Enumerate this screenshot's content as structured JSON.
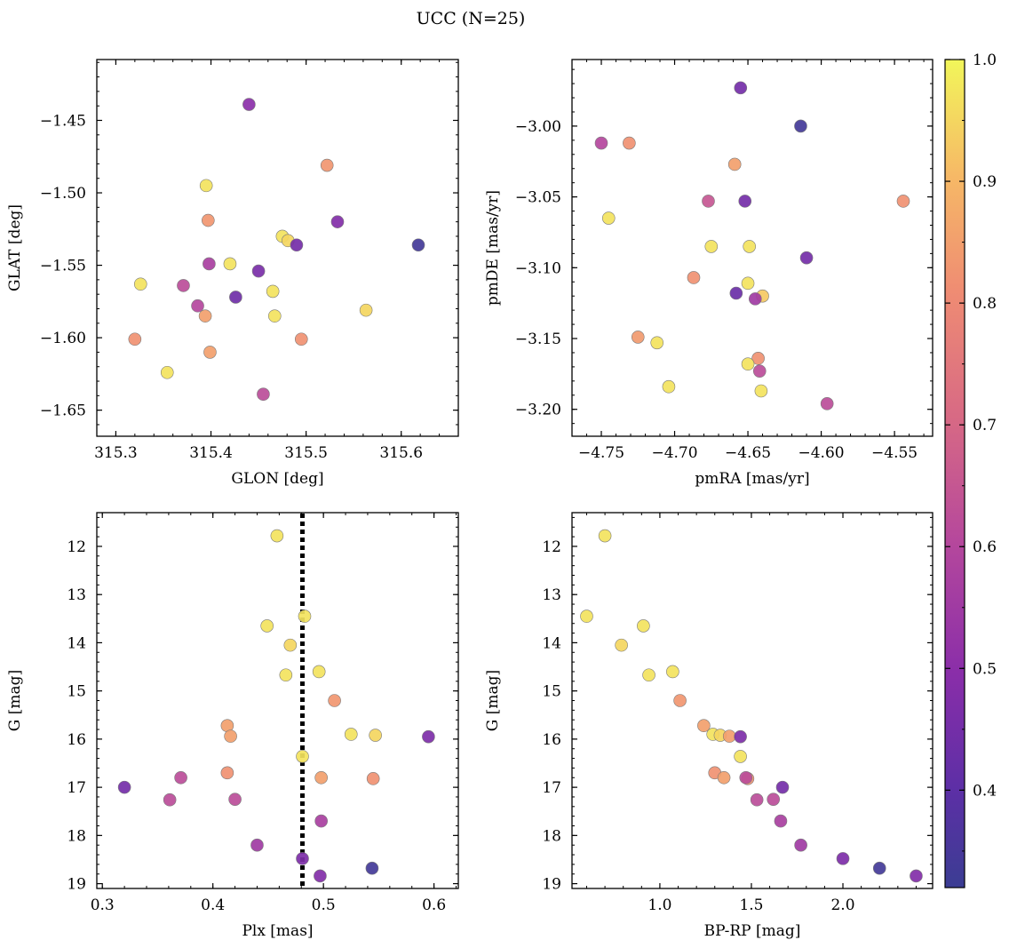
{
  "figure": {
    "title": "UCC (N=25)"
  },
  "colorbar": {
    "cmap": "plasma",
    "range": [
      0.32,
      1.0
    ],
    "ticks": [
      0.4,
      0.5,
      0.6,
      0.7,
      0.8,
      0.9,
      1.0
    ],
    "tick_labels": [
      "0.4",
      "0.5",
      "0.6",
      "0.7",
      "0.8",
      "0.9",
      "1.0"
    ]
  },
  "chart_data": [
    {
      "type": "scatter",
      "xlabel": "GLON [deg]",
      "ylabel": "GLAT [deg]",
      "xlim": [
        315.28,
        315.66
      ],
      "ylim": [
        -1.668,
        -1.408
      ],
      "xticks": [
        315.3,
        315.4,
        315.5,
        315.6
      ],
      "xtick_labels": [
        "315.3",
        "315.4",
        "315.5",
        "315.6"
      ],
      "yticks": [
        -1.45,
        -1.5,
        -1.55,
        -1.6,
        -1.65
      ],
      "ytick_labels": [
        "−1.45",
        "−1.50",
        "−1.55",
        "−1.60",
        "−1.65"
      ],
      "y_inverted": false,
      "points": [
        {
          "x": 315.44,
          "y": -1.439,
          "c": 0.5
        },
        {
          "x": 315.522,
          "y": -1.481,
          "c": 0.83
        },
        {
          "x": 315.395,
          "y": -1.495,
          "c": 0.97
        },
        {
          "x": 315.397,
          "y": -1.519,
          "c": 0.83
        },
        {
          "x": 315.533,
          "y": -1.52,
          "c": 0.48
        },
        {
          "x": 315.475,
          "y": -1.53,
          "c": 0.97
        },
        {
          "x": 315.481,
          "y": -1.533,
          "c": 0.95
        },
        {
          "x": 315.49,
          "y": -1.536,
          "c": 0.45
        },
        {
          "x": 315.618,
          "y": -1.536,
          "c": 0.34
        },
        {
          "x": 315.42,
          "y": -1.549,
          "c": 0.97
        },
        {
          "x": 315.398,
          "y": -1.549,
          "c": 0.57
        },
        {
          "x": 315.45,
          "y": -1.554,
          "c": 0.46
        },
        {
          "x": 315.326,
          "y": -1.563,
          "c": 0.97
        },
        {
          "x": 315.371,
          "y": -1.564,
          "c": 0.62
        },
        {
          "x": 315.465,
          "y": -1.568,
          "c": 0.97
        },
        {
          "x": 315.426,
          "y": -1.572,
          "c": 0.44
        },
        {
          "x": 315.386,
          "y": -1.578,
          "c": 0.6
        },
        {
          "x": 315.563,
          "y": -1.581,
          "c": 0.95
        },
        {
          "x": 315.394,
          "y": -1.585,
          "c": 0.85
        },
        {
          "x": 315.467,
          "y": -1.585,
          "c": 0.97
        },
        {
          "x": 315.32,
          "y": -1.601,
          "c": 0.82
        },
        {
          "x": 315.495,
          "y": -1.601,
          "c": 0.82
        },
        {
          "x": 315.399,
          "y": -1.61,
          "c": 0.85
        },
        {
          "x": 315.354,
          "y": -1.624,
          "c": 0.97
        },
        {
          "x": 315.455,
          "y": -1.639,
          "c": 0.62
        }
      ]
    },
    {
      "type": "scatter",
      "xlabel": "pmRA [mas/yr]",
      "ylabel": "pmDE [mas/yr]",
      "xlim": [
        -4.77,
        -4.524
      ],
      "ylim": [
        -3.219,
        -2.953
      ],
      "xticks": [
        -4.75,
        -4.7,
        -4.65,
        -4.6,
        -4.55
      ],
      "xtick_labels": [
        "−4.75",
        "−4.70",
        "−4.65",
        "−4.60",
        "−4.55"
      ],
      "yticks": [
        -3.0,
        -3.05,
        -3.1,
        -3.15,
        -3.2
      ],
      "ytick_labels": [
        "−3.00",
        "−3.05",
        "−3.10",
        "−3.15",
        "−3.20"
      ],
      "y_inverted": false,
      "points": [
        {
          "x": -4.655,
          "y": -2.973,
          "c": 0.45
        },
        {
          "x": -4.614,
          "y": -3.0,
          "c": 0.34
        },
        {
          "x": -4.75,
          "y": -3.012,
          "c": 0.6
        },
        {
          "x": -4.731,
          "y": -3.012,
          "c": 0.82
        },
        {
          "x": -4.659,
          "y": -3.027,
          "c": 0.85
        },
        {
          "x": -4.544,
          "y": -3.053,
          "c": 0.82
        },
        {
          "x": -4.677,
          "y": -3.053,
          "c": 0.65
        },
        {
          "x": -4.652,
          "y": -3.053,
          "c": 0.45
        },
        {
          "x": -4.745,
          "y": -3.065,
          "c": 0.97
        },
        {
          "x": -4.675,
          "y": -3.085,
          "c": 0.97
        },
        {
          "x": -4.649,
          "y": -3.085,
          "c": 0.97
        },
        {
          "x": -4.61,
          "y": -3.093,
          "c": 0.45
        },
        {
          "x": -4.687,
          "y": -3.107,
          "c": 0.82
        },
        {
          "x": -4.65,
          "y": -3.111,
          "c": 0.97
        },
        {
          "x": -4.658,
          "y": -3.118,
          "c": 0.43
        },
        {
          "x": -4.64,
          "y": -3.12,
          "c": 0.93
        },
        {
          "x": -4.645,
          "y": -3.122,
          "c": 0.55
        },
        {
          "x": -4.725,
          "y": -3.149,
          "c": 0.84
        },
        {
          "x": -4.712,
          "y": -3.153,
          "c": 0.97
        },
        {
          "x": -4.643,
          "y": -3.164,
          "c": 0.82
        },
        {
          "x": -4.65,
          "y": -3.168,
          "c": 0.97
        },
        {
          "x": -4.642,
          "y": -3.173,
          "c": 0.62
        },
        {
          "x": -4.704,
          "y": -3.184,
          "c": 0.97
        },
        {
          "x": -4.641,
          "y": -3.187,
          "c": 0.97
        },
        {
          "x": -4.596,
          "y": -3.196,
          "c": 0.62
        }
      ]
    },
    {
      "type": "scatter",
      "xlabel": "Plx [mas]",
      "ylabel": "G [mag]",
      "xlim": [
        0.295,
        0.622
      ],
      "ylim": [
        19.1,
        11.3
      ],
      "xticks": [
        0.3,
        0.4,
        0.5,
        0.6
      ],
      "xtick_labels": [
        "0.3",
        "0.4",
        "0.5",
        "0.6"
      ],
      "yticks": [
        12,
        13,
        14,
        15,
        16,
        17,
        18,
        19
      ],
      "ytick_labels": [
        "12",
        "13",
        "14",
        "15",
        "16",
        "17",
        "18",
        "19"
      ],
      "y_inverted": true,
      "vline": {
        "x": 0.481,
        "style": "dotted",
        "color": "#000000"
      },
      "points": [
        {
          "x": 0.458,
          "y": 11.78,
          "c": 0.97
        },
        {
          "x": 0.483,
          "y": 13.45,
          "c": 0.97
        },
        {
          "x": 0.449,
          "y": 13.65,
          "c": 0.97
        },
        {
          "x": 0.47,
          "y": 14.05,
          "c": 0.95
        },
        {
          "x": 0.466,
          "y": 14.67,
          "c": 0.97
        },
        {
          "x": 0.496,
          "y": 14.6,
          "c": 0.97
        },
        {
          "x": 0.51,
          "y": 15.2,
          "c": 0.83
        },
        {
          "x": 0.413,
          "y": 15.72,
          "c": 0.85
        },
        {
          "x": 0.416,
          "y": 15.94,
          "c": 0.85
        },
        {
          "x": 0.525,
          "y": 15.9,
          "c": 0.97
        },
        {
          "x": 0.547,
          "y": 15.92,
          "c": 0.95
        },
        {
          "x": 0.595,
          "y": 15.95,
          "c": 0.47
        },
        {
          "x": 0.481,
          "y": 16.36,
          "c": 0.97
        },
        {
          "x": 0.413,
          "y": 16.7,
          "c": 0.82
        },
        {
          "x": 0.371,
          "y": 16.8,
          "c": 0.62
        },
        {
          "x": 0.498,
          "y": 16.8,
          "c": 0.85
        },
        {
          "x": 0.545,
          "y": 16.82,
          "c": 0.82
        },
        {
          "x": 0.32,
          "y": 17.0,
          "c": 0.45
        },
        {
          "x": 0.361,
          "y": 17.26,
          "c": 0.62
        },
        {
          "x": 0.42,
          "y": 17.25,
          "c": 0.62
        },
        {
          "x": 0.498,
          "y": 17.7,
          "c": 0.57
        },
        {
          "x": 0.44,
          "y": 18.2,
          "c": 0.55
        },
        {
          "x": 0.481,
          "y": 18.48,
          "c": 0.47
        },
        {
          "x": 0.544,
          "y": 18.68,
          "c": 0.34
        },
        {
          "x": 0.497,
          "y": 18.84,
          "c": 0.48
        }
      ]
    },
    {
      "type": "scatter",
      "xlabel": "BP-RP [mag]",
      "ylabel": "G [mag]",
      "xlim": [
        0.52,
        2.49
      ],
      "ylim": [
        19.1,
        11.3
      ],
      "xticks": [
        1.0,
        1.5,
        2.0
      ],
      "xtick_labels": [
        "1.0",
        "1.5",
        "2.0"
      ],
      "yticks": [
        12,
        13,
        14,
        15,
        16,
        17,
        18,
        19
      ],
      "ytick_labels": [
        "12",
        "13",
        "14",
        "15",
        "16",
        "17",
        "18",
        "19"
      ],
      "y_inverted": true,
      "points": [
        {
          "x": 0.7,
          "y": 11.78,
          "c": 0.97
        },
        {
          "x": 0.6,
          "y": 13.45,
          "c": 0.97
        },
        {
          "x": 0.91,
          "y": 13.65,
          "c": 0.97
        },
        {
          "x": 0.79,
          "y": 14.05,
          "c": 0.95
        },
        {
          "x": 0.94,
          "y": 14.67,
          "c": 0.97
        },
        {
          "x": 1.07,
          "y": 14.6,
          "c": 0.97
        },
        {
          "x": 1.11,
          "y": 15.2,
          "c": 0.83
        },
        {
          "x": 1.24,
          "y": 15.72,
          "c": 0.85
        },
        {
          "x": 1.29,
          "y": 15.9,
          "c": 0.97
        },
        {
          "x": 1.33,
          "y": 15.92,
          "c": 0.95
        },
        {
          "x": 1.38,
          "y": 15.94,
          "c": 0.85
        },
        {
          "x": 1.44,
          "y": 15.95,
          "c": 0.47
        },
        {
          "x": 1.44,
          "y": 16.36,
          "c": 0.97
        },
        {
          "x": 1.3,
          "y": 16.7,
          "c": 0.82
        },
        {
          "x": 1.35,
          "y": 16.8,
          "c": 0.85
        },
        {
          "x": 1.48,
          "y": 16.82,
          "c": 0.82
        },
        {
          "x": 1.47,
          "y": 16.8,
          "c": 0.62
        },
        {
          "x": 1.67,
          "y": 17.0,
          "c": 0.45
        },
        {
          "x": 1.53,
          "y": 17.26,
          "c": 0.62
        },
        {
          "x": 1.62,
          "y": 17.25,
          "c": 0.62
        },
        {
          "x": 1.66,
          "y": 17.7,
          "c": 0.57
        },
        {
          "x": 1.77,
          "y": 18.2,
          "c": 0.55
        },
        {
          "x": 2.0,
          "y": 18.48,
          "c": 0.47
        },
        {
          "x": 2.2,
          "y": 18.68,
          "c": 0.34
        },
        {
          "x": 2.4,
          "y": 18.84,
          "c": 0.48
        }
      ]
    }
  ]
}
